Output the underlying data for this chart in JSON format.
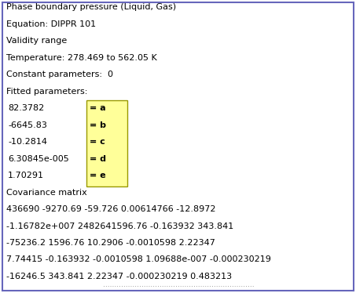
{
  "title_lines": [
    "Phase boundary pressure (Liquid, Gas)",
    "Equation: DIPPR 101",
    "Validity range",
    "Temperature: 278.469 to 562.05 K",
    "Constant parameters:  0",
    "Fitted parameters:"
  ],
  "param_values": [
    "82.3782",
    "-6645.83",
    "-10.2814",
    "6.30845e-005",
    "1.70291"
  ],
  "param_labels": [
    "= a",
    "= b",
    "= c",
    "= d",
    "= e"
  ],
  "covariance_lines": [
    "Covariance matrix",
    "436690 -9270.69 -59.726 0.00614766 -12.8972",
    "-1.16782e+007 2482641596.76 -0.163932 343.841",
    "-75236.2 1596.76 10.2906 -0.0010598 2.22347",
    "7.74415 -0.163932 -0.0010598 1.09688e-007 -0.000230219",
    "-16246.5 343.841 2.22347 -0.000230219 0.483213"
  ],
  "bg_color": "#ffffff",
  "border_color": "#6666bb",
  "text_color": "#000000",
  "box_fill_color": "#ffff99",
  "box_border_color": "#999900",
  "font_size": 8.0,
  "watermark": "..................................................................."
}
